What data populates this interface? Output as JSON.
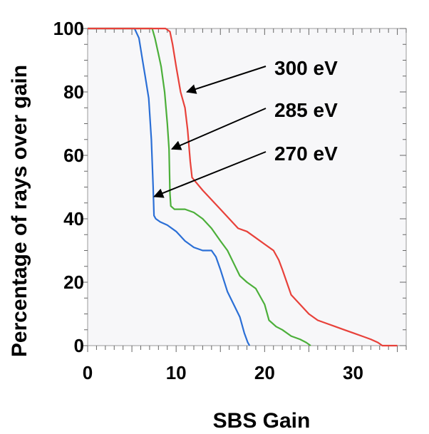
{
  "chart_data": {
    "type": "line",
    "title": "",
    "xlabel": "SBS Gain",
    "ylabel": "Percentage of rays over gain",
    "xlim": [
      0,
      36
    ],
    "ylim": [
      0,
      100
    ],
    "xticks": [
      0,
      10,
      20,
      30
    ],
    "yticks": [
      0,
      20,
      40,
      60,
      80,
      100
    ],
    "grid": false,
    "legend": "none",
    "series": [
      {
        "name": "270 eV",
        "color": "#2b6fd6",
        "points": [
          [
            0,
            100
          ],
          [
            5.3,
            100
          ],
          [
            5.8,
            97
          ],
          [
            6.2,
            90
          ],
          [
            6.5,
            85
          ],
          [
            6.9,
            78
          ],
          [
            7.2,
            65
          ],
          [
            7.4,
            50
          ],
          [
            7.5,
            41
          ],
          [
            7.7,
            40
          ],
          [
            8.2,
            39
          ],
          [
            9,
            38
          ],
          [
            10,
            36
          ],
          [
            11,
            33
          ],
          [
            12,
            31
          ],
          [
            13,
            30
          ],
          [
            14,
            30
          ],
          [
            14.5,
            28
          ],
          [
            15,
            24
          ],
          [
            15.8,
            17
          ],
          [
            16.5,
            13
          ],
          [
            17.2,
            9
          ],
          [
            17.7,
            4
          ],
          [
            18.1,
            1
          ],
          [
            18.3,
            0
          ]
        ]
      },
      {
        "name": "285 eV",
        "color": "#4caf3a",
        "points": [
          [
            0,
            100
          ],
          [
            7.3,
            100
          ],
          [
            7.6,
            97
          ],
          [
            8,
            92
          ],
          [
            8.3,
            88
          ],
          [
            8.7,
            80
          ],
          [
            9.0,
            70
          ],
          [
            9.2,
            62
          ],
          [
            9.3,
            48
          ],
          [
            9.4,
            44
          ],
          [
            9.8,
            43
          ],
          [
            11,
            43
          ],
          [
            12,
            42
          ],
          [
            13,
            40
          ],
          [
            14,
            37
          ],
          [
            15,
            33
          ],
          [
            15.8,
            30
          ],
          [
            16.5,
            26
          ],
          [
            17.2,
            22
          ],
          [
            18,
            20
          ],
          [
            19,
            18
          ],
          [
            20,
            13
          ],
          [
            20.5,
            8
          ],
          [
            21.3,
            6
          ],
          [
            22,
            5
          ],
          [
            23,
            3
          ],
          [
            24,
            2
          ],
          [
            24.7,
            1
          ],
          [
            25.2,
            0
          ]
        ]
      },
      {
        "name": "300 eV",
        "color": "#e8413a",
        "points": [
          [
            0,
            100
          ],
          [
            8.8,
            100
          ],
          [
            9.3,
            99
          ],
          [
            9.6,
            95
          ],
          [
            10,
            88
          ],
          [
            10.5,
            80
          ],
          [
            11,
            75
          ],
          [
            11.3,
            68
          ],
          [
            11.6,
            58
          ],
          [
            11.8,
            53
          ],
          [
            12.1,
            52
          ],
          [
            13,
            49
          ],
          [
            14,
            46
          ],
          [
            15,
            43
          ],
          [
            16,
            40
          ],
          [
            17,
            37
          ],
          [
            18,
            36
          ],
          [
            19,
            34
          ],
          [
            20,
            32
          ],
          [
            21,
            30
          ],
          [
            21.6,
            27
          ],
          [
            22,
            24
          ],
          [
            22.5,
            20
          ],
          [
            23,
            16
          ],
          [
            24,
            13
          ],
          [
            25,
            10
          ],
          [
            26,
            8
          ],
          [
            27,
            7
          ],
          [
            28,
            6
          ],
          [
            29,
            5
          ],
          [
            30,
            4
          ],
          [
            31,
            3
          ],
          [
            32,
            2
          ],
          [
            32.8,
            1
          ],
          [
            33.3,
            0
          ],
          [
            35,
            0
          ]
        ]
      }
    ],
    "annotations": [
      {
        "text": "300 eV",
        "target": [
          10.9,
          80
        ]
      },
      {
        "text": "285 eV",
        "target": [
          9.2,
          62
        ]
      },
      {
        "text": "270 eV",
        "target": [
          7.2,
          47
        ]
      }
    ]
  }
}
